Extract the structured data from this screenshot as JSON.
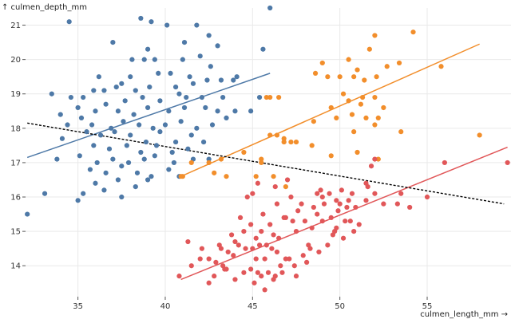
{
  "chart_data": {
    "type": "scatter",
    "title": "",
    "xlabel": "culmen_length_mm →",
    "ylabel": "↑ culmen_depth_mm",
    "xlim": [
      32,
      59.8
    ],
    "ylim": [
      13.1,
      21.5
    ],
    "grid": true,
    "x_ticks": [
      35,
      40,
      45,
      50,
      55
    ],
    "y_ticks": [
      14,
      15,
      16,
      17,
      18,
      19,
      20,
      21
    ],
    "series": [
      {
        "color": "#4e79a7",
        "points": [
          [
            34.5,
            21.1
          ],
          [
            38.6,
            21.2
          ],
          [
            39.2,
            21.1
          ],
          [
            40.1,
            21.0
          ],
          [
            41.8,
            21.0
          ],
          [
            42.5,
            20.7
          ],
          [
            37.0,
            20.5
          ],
          [
            39.0,
            20.3
          ],
          [
            41.1,
            20.5
          ],
          [
            43.0,
            20.4
          ],
          [
            45.6,
            20.3
          ],
          [
            38.1,
            20.0
          ],
          [
            38.8,
            20.0
          ],
          [
            39.4,
            20.0
          ],
          [
            41.0,
            20.0
          ],
          [
            42.0,
            20.1
          ],
          [
            42.6,
            19.8
          ],
          [
            36.2,
            19.5
          ],
          [
            37.5,
            19.3
          ],
          [
            38.0,
            19.5
          ],
          [
            39.6,
            19.6
          ],
          [
            40.3,
            19.6
          ],
          [
            41.4,
            19.5
          ],
          [
            44.1,
            19.5
          ],
          [
            35.9,
            19.1
          ],
          [
            36.5,
            19.1
          ],
          [
            37.2,
            19.2
          ],
          [
            38.3,
            19.1
          ],
          [
            39.1,
            19.2
          ],
          [
            40.6,
            19.2
          ],
          [
            41.6,
            19.3
          ],
          [
            42.4,
            19.4
          ],
          [
            43.2,
            19.4
          ],
          [
            43.9,
            19.4
          ],
          [
            33.5,
            19.0
          ],
          [
            34.6,
            18.9
          ],
          [
            35.3,
            18.9
          ],
          [
            36.6,
            18.7
          ],
          [
            37.7,
            18.8
          ],
          [
            38.7,
            18.9
          ],
          [
            39.7,
            18.8
          ],
          [
            40.8,
            19.0
          ],
          [
            41.2,
            18.9
          ],
          [
            42.1,
            18.9
          ],
          [
            43.3,
            18.9
          ],
          [
            44.9,
            18.5
          ],
          [
            34.0,
            18.4
          ],
          [
            35.0,
            18.6
          ],
          [
            36.0,
            18.5
          ],
          [
            37.3,
            18.5
          ],
          [
            38.2,
            18.4
          ],
          [
            39.0,
            18.6
          ],
          [
            40.2,
            18.5
          ],
          [
            41.1,
            18.6
          ],
          [
            42.3,
            18.6
          ],
          [
            43.0,
            18.5
          ],
          [
            44.0,
            18.5
          ],
          [
            34.4,
            18.1
          ],
          [
            35.2,
            18.3
          ],
          [
            35.8,
            18.1
          ],
          [
            36.9,
            18.0
          ],
          [
            37.6,
            18.2
          ],
          [
            38.5,
            18.1
          ],
          [
            39.3,
            18.0
          ],
          [
            40.0,
            18.1
          ],
          [
            40.9,
            18.2
          ],
          [
            41.8,
            18.0
          ],
          [
            42.7,
            18.1
          ],
          [
            43.5,
            18.3
          ],
          [
            35.5,
            17.9
          ],
          [
            36.3,
            17.8
          ],
          [
            37.1,
            17.9
          ],
          [
            38.0,
            17.8
          ],
          [
            38.9,
            17.6
          ],
          [
            39.7,
            17.9
          ],
          [
            40.6,
            17.6
          ],
          [
            41.5,
            17.8
          ],
          [
            42.2,
            17.6
          ],
          [
            34.1,
            17.7
          ],
          [
            35.9,
            17.5
          ],
          [
            36.8,
            17.4
          ],
          [
            37.8,
            17.5
          ],
          [
            38.6,
            17.3
          ],
          [
            39.5,
            17.5
          ],
          [
            40.4,
            17.3
          ],
          [
            41.3,
            17.4
          ],
          [
            33.8,
            17.1
          ],
          [
            35.1,
            17.2
          ],
          [
            36.1,
            17.0
          ],
          [
            37.0,
            17.1
          ],
          [
            37.9,
            17.0
          ],
          [
            38.8,
            17.1
          ],
          [
            39.4,
            17.2
          ],
          [
            40.5,
            17.0
          ],
          [
            41.6,
            17.1
          ],
          [
            42.5,
            17.1
          ],
          [
            35.7,
            16.8
          ],
          [
            36.6,
            16.7
          ],
          [
            37.5,
            16.9
          ],
          [
            38.4,
            16.7
          ],
          [
            39.2,
            16.6
          ],
          [
            40.2,
            16.8
          ],
          [
            36.0,
            16.4
          ],
          [
            37.3,
            16.5
          ],
          [
            38.3,
            16.3
          ],
          [
            39.0,
            16.5
          ],
          [
            40.8,
            16.6
          ],
          [
            35.3,
            16.1
          ],
          [
            36.5,
            16.2
          ],
          [
            37.5,
            16.0
          ],
          [
            35.0,
            15.9
          ],
          [
            33.1,
            16.1
          ],
          [
            32.1,
            15.5
          ],
          [
            46.0,
            21.5
          ],
          [
            45.4,
            18.9
          ]
        ]
      },
      {
        "color": "#f28e2b",
        "points": [
          [
            52.0,
            20.7
          ],
          [
            54.2,
            20.8
          ],
          [
            55.8,
            19.8
          ],
          [
            51.7,
            20.3
          ],
          [
            52.7,
            19.8
          ],
          [
            53.4,
            19.9
          ],
          [
            50.5,
            20.0
          ],
          [
            49.0,
            19.9
          ],
          [
            48.6,
            19.6
          ],
          [
            50.0,
            19.5
          ],
          [
            51.0,
            19.7
          ],
          [
            49.3,
            19.5
          ],
          [
            50.8,
            19.5
          ],
          [
            51.4,
            19.4
          ],
          [
            52.1,
            19.5
          ],
          [
            46.0,
            18.9
          ],
          [
            45.8,
            18.9
          ],
          [
            46.5,
            18.9
          ],
          [
            50.2,
            19.0
          ],
          [
            50.5,
            18.8
          ],
          [
            51.3,
            18.9
          ],
          [
            52.0,
            18.9
          ],
          [
            51.2,
            18.7
          ],
          [
            49.5,
            18.6
          ],
          [
            52.5,
            18.6
          ],
          [
            49.8,
            18.3
          ],
          [
            50.7,
            18.4
          ],
          [
            51.5,
            18.3
          ],
          [
            52.2,
            18.3
          ],
          [
            46.8,
            17.7
          ],
          [
            46.4,
            17.8
          ],
          [
            46.0,
            17.8
          ],
          [
            47.2,
            17.6
          ],
          [
            50.8,
            17.9
          ],
          [
            52.0,
            18.1
          ],
          [
            53.5,
            17.9
          ],
          [
            48.4,
            17.5
          ],
          [
            49.5,
            17.2
          ],
          [
            51.0,
            17.3
          ],
          [
            52.2,
            17.1
          ],
          [
            44.5,
            17.3
          ],
          [
            45.5,
            17.1
          ],
          [
            46.2,
            16.6
          ],
          [
            45.2,
            16.6
          ],
          [
            46.9,
            16.3
          ],
          [
            43.5,
            16.6
          ],
          [
            41.5,
            17.0
          ],
          [
            42.5,
            17.0
          ],
          [
            41.0,
            16.6
          ],
          [
            40.9,
            16.6
          ],
          [
            42.8,
            16.7
          ],
          [
            43.2,
            17.1
          ],
          [
            58.0,
            17.8
          ],
          [
            46.8,
            17.6
          ],
          [
            45.5,
            17.0
          ],
          [
            48.5,
            18.2
          ],
          [
            47.5,
            17.6
          ]
        ]
      },
      {
        "color": "#e15759",
        "points": [
          [
            59.6,
            17.0
          ],
          [
            56.0,
            17.0
          ],
          [
            55.0,
            16.0
          ],
          [
            54.0,
            15.7
          ],
          [
            53.3,
            15.8
          ],
          [
            52.5,
            15.8
          ],
          [
            52.0,
            16.1
          ],
          [
            51.5,
            16.4
          ],
          [
            52.0,
            17.1
          ],
          [
            51.8,
            16.9
          ],
          [
            50.4,
            15.7
          ],
          [
            49.8,
            15.9
          ],
          [
            49.1,
            15.8
          ],
          [
            49.0,
            16.0
          ],
          [
            50.1,
            16.2
          ],
          [
            50.5,
            15.9
          ],
          [
            48.7,
            16.1
          ],
          [
            48.5,
            15.7
          ],
          [
            47.8,
            15.8
          ],
          [
            47.5,
            15.0
          ],
          [
            47.3,
            15.3
          ],
          [
            46.8,
            15.4
          ],
          [
            46.5,
            14.8
          ],
          [
            46.2,
            14.9
          ],
          [
            45.8,
            14.6
          ],
          [
            45.5,
            15.0
          ],
          [
            45.2,
            14.8
          ],
          [
            45.0,
            14.5
          ],
          [
            44.5,
            15.0
          ],
          [
            44.0,
            14.7
          ],
          [
            43.6,
            14.4
          ],
          [
            43.2,
            14.5
          ],
          [
            42.8,
            13.7
          ],
          [
            42.5,
            13.5
          ],
          [
            42.0,
            14.2
          ],
          [
            41.5,
            14.0
          ],
          [
            40.8,
            13.7
          ],
          [
            43.1,
            14.6
          ],
          [
            43.8,
            14.9
          ],
          [
            44.2,
            14.6
          ],
          [
            44.9,
            15.2
          ],
          [
            45.6,
            15.5
          ],
          [
            46.0,
            15.2
          ],
          [
            46.4,
            15.8
          ],
          [
            46.9,
            15.4
          ],
          [
            47.2,
            16.0
          ],
          [
            47.6,
            15.6
          ],
          [
            48.0,
            15.3
          ],
          [
            48.4,
            15.1
          ],
          [
            48.7,
            15.5
          ],
          [
            49.0,
            15.3
          ],
          [
            49.5,
            15.4
          ],
          [
            49.8,
            15.1
          ],
          [
            50.0,
            15.8
          ],
          [
            50.3,
            15.3
          ],
          [
            50.6,
            15.3
          ],
          [
            51.1,
            15.2
          ],
          [
            51.5,
            15.9
          ],
          [
            48.2,
            14.6
          ],
          [
            47.9,
            14.3
          ],
          [
            47.4,
            14.0
          ],
          [
            46.9,
            14.2
          ],
          [
            46.6,
            14.0
          ],
          [
            46.1,
            14.5
          ],
          [
            45.7,
            14.2
          ],
          [
            45.3,
            13.8
          ],
          [
            44.9,
            13.9
          ],
          [
            44.5,
            13.8
          ],
          [
            44.0,
            13.6
          ],
          [
            43.4,
            13.9
          ],
          [
            45.0,
            16.1
          ],
          [
            45.3,
            16.4
          ],
          [
            46.3,
            16.3
          ],
          [
            47.0,
            16.5
          ],
          [
            45.4,
            14.6
          ],
          [
            45.2,
            14.2
          ],
          [
            44.3,
            15.4
          ],
          [
            44.7,
            16.0
          ],
          [
            45.5,
            13.7
          ],
          [
            46.2,
            13.6
          ],
          [
            46.7,
            13.8
          ],
          [
            47.1,
            14.2
          ],
          [
            47.5,
            13.7
          ],
          [
            48.1,
            14.1
          ],
          [
            48.8,
            14.4
          ],
          [
            49.3,
            14.6
          ],
          [
            49.6,
            14.9
          ],
          [
            50.2,
            14.8
          ],
          [
            50.8,
            15.0
          ],
          [
            49.9,
            15.6
          ],
          [
            43.3,
            14.0
          ],
          [
            42.9,
            14.1
          ],
          [
            42.5,
            14.2
          ],
          [
            41.3,
            14.7
          ],
          [
            42.1,
            14.5
          ],
          [
            43.5,
            13.9
          ],
          [
            45.1,
            13.5
          ],
          [
            45.9,
            13.8
          ],
          [
            46.3,
            13.7
          ],
          [
            48.3,
            14.5
          ],
          [
            49.7,
            15.0
          ],
          [
            53.5,
            16.1
          ],
          [
            50.9,
            15.7
          ],
          [
            51.6,
            16.3
          ],
          [
            48.9,
            16.2
          ],
          [
            49.4,
            16.1
          ],
          [
            50.7,
            16.1
          ],
          [
            45.7,
            13.3
          ],
          [
            46.4,
            14.4
          ],
          [
            44.6,
            14.5
          ],
          [
            43.9,
            14.3
          ]
        ]
      }
    ],
    "regression_lines": [
      {
        "color": "#4e79a7",
        "x": [
          32.1,
          46.0
        ],
        "y": [
          17.15,
          19.6
        ],
        "dashed": false
      },
      {
        "color": "#f28e2b",
        "x": [
          40.9,
          58.0
        ],
        "y": [
          16.6,
          20.45
        ],
        "dashed": false
      },
      {
        "color": "#e15759",
        "x": [
          40.9,
          59.6
        ],
        "y": [
          13.6,
          17.45
        ],
        "dashed": false
      },
      {
        "color": "#000000",
        "x": [
          32.1,
          59.4
        ],
        "y": [
          18.15,
          15.8
        ],
        "dashed": true
      }
    ]
  }
}
